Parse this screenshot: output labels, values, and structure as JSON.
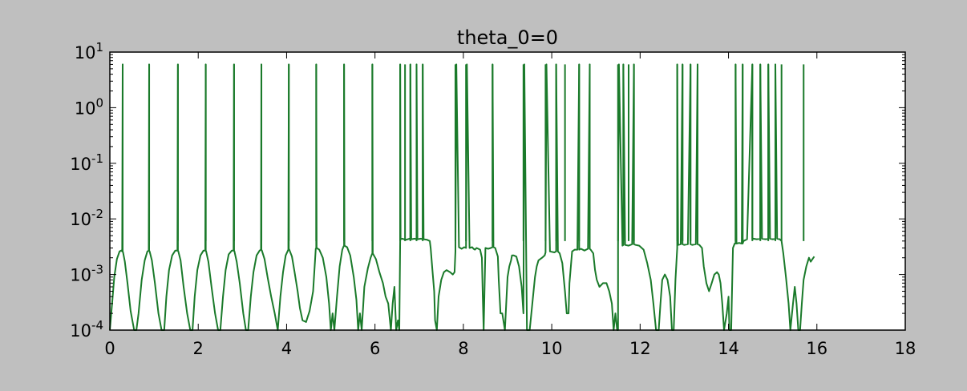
{
  "colors": {
    "figure_background": "#bfbfbf",
    "axes_background": "#ffffff",
    "series": "#1a7a2a",
    "frame": "#000000"
  },
  "chart_data": {
    "type": "line",
    "title": "theta_0=0",
    "xlabel": "",
    "ylabel": "",
    "xlim": [
      0,
      18
    ],
    "ylim": [
      0.0001,
      10
    ],
    "yscale": "log",
    "grid": false,
    "x_ticks": [
      "0",
      "2",
      "4",
      "6",
      "8",
      "10",
      "12",
      "14",
      "16",
      "18"
    ],
    "y_ticks": [
      {
        "base": "10",
        "exp": "-4"
      },
      {
        "base": "10",
        "exp": "-3"
      },
      {
        "base": "10",
        "exp": "-2"
      },
      {
        "base": "10",
        "exp": "-1"
      },
      {
        "base": "10",
        "exp": "0"
      },
      {
        "base": "10",
        "exp": "1"
      }
    ],
    "series": [
      {
        "color": "#1a7a2a",
        "x": [
          0.0,
          0.05,
          0.1,
          0.16,
          0.22,
          0.26,
          0.28,
          0.29,
          0.29,
          0.3,
          0.34,
          0.4,
          0.47,
          0.55,
          0.6,
          0.65,
          0.72,
          0.79,
          0.85,
          0.88,
          0.89,
          0.89,
          0.9,
          0.95,
          1.02,
          1.1,
          1.17,
          1.23,
          1.28,
          1.34,
          1.41,
          1.48,
          1.53,
          1.54,
          1.54,
          1.55,
          1.6,
          1.67,
          1.75,
          1.82,
          1.87,
          1.92,
          1.98,
          2.05,
          2.12,
          2.16,
          2.17,
          2.17,
          2.18,
          2.23,
          2.3,
          2.38,
          2.45,
          2.5,
          2.56,
          2.62,
          2.69,
          2.76,
          2.8,
          2.81,
          2.81,
          2.82,
          2.87,
          2.94,
          3.02,
          3.08,
          3.13,
          3.19,
          3.25,
          3.32,
          3.39,
          3.42,
          3.43,
          3.43,
          3.44,
          3.5,
          3.57,
          3.65,
          3.73,
          3.8,
          3.86,
          3.92,
          3.98,
          4.04,
          4.05,
          4.05,
          4.06,
          4.12,
          4.18,
          4.25,
          4.3,
          4.36,
          4.44,
          4.52,
          4.6,
          4.66,
          4.67,
          4.67,
          4.68,
          4.74,
          4.82,
          4.9,
          4.96,
          5.0,
          5.04,
          5.08,
          5.14,
          5.2,
          5.26,
          5.29,
          5.3,
          5.3,
          5.31,
          5.37,
          5.44,
          5.52,
          5.58,
          5.62,
          5.66,
          5.7,
          5.76,
          5.84,
          5.9,
          5.93,
          5.94,
          5.94,
          5.95,
          6.02,
          6.1,
          6.18,
          6.24,
          6.3,
          6.36,
          6.4,
          6.44,
          6.48,
          6.52,
          6.55,
          6.57,
          6.57,
          6.58,
          6.62,
          6.7,
          6.78,
          6.8,
          6.8,
          6.82,
          6.9,
          6.94,
          6.94,
          6.96,
          7.04,
          7.08,
          7.08,
          7.1,
          7.18,
          7.24,
          7.26,
          7.3,
          7.34,
          7.36,
          7.4,
          7.44,
          7.5,
          7.56,
          7.62,
          7.7,
          7.76,
          7.8,
          7.82,
          7.82,
          7.84,
          7.9,
          7.96,
          8.02,
          8.06,
          8.06,
          8.08,
          8.14,
          8.2,
          8.23,
          8.26,
          8.3,
          8.34,
          8.38,
          8.42,
          8.44,
          8.46,
          8.5,
          8.56,
          8.62,
          8.66,
          8.66,
          8.68,
          8.72,
          8.78,
          8.8,
          8.84,
          8.88,
          8.94,
          9.0,
          9.04,
          9.08,
          9.1,
          9.14,
          9.2,
          9.26,
          9.32,
          9.36,
          9.36,
          9.38,
          9.44,
          9.5,
          9.56,
          9.62,
          9.66,
          9.7,
          9.78,
          9.84,
          9.86,
          9.86,
          9.88,
          9.96,
          10.06,
          10.1,
          10.1,
          10.14,
          10.18,
          10.24,
          10.3,
          10.34,
          10.38,
          10.4,
          10.46,
          10.52,
          10.58,
          10.62,
          10.62,
          10.66,
          10.74,
          10.82,
          10.86,
          10.86,
          10.88,
          10.94,
          10.98,
          11.02,
          11.08,
          11.16,
          11.24,
          11.3,
          11.36,
          11.4,
          11.44,
          11.48,
          11.5,
          11.5,
          11.52,
          11.6,
          11.62,
          11.62,
          11.66,
          11.74,
          11.82,
          11.86,
          11.86,
          11.9,
          11.98,
          12.08,
          12.16,
          12.24,
          12.3,
          12.36,
          12.42,
          12.46,
          12.5,
          12.56,
          12.62,
          12.68,
          12.72,
          12.76,
          12.8,
          12.84,
          12.84,
          12.86,
          12.92,
          12.96,
          12.96,
          13.0,
          13.08,
          13.14,
          13.14,
          13.18,
          13.26,
          13.3,
          13.3,
          13.34,
          13.4,
          13.44,
          13.5,
          13.56,
          13.62,
          13.68,
          13.74,
          13.78,
          13.82,
          13.86,
          13.9,
          13.96,
          14.0,
          14.02,
          14.06,
          14.1,
          14.14,
          14.16,
          14.16,
          14.18,
          14.24,
          14.3,
          14.32,
          14.32,
          14.34,
          14.42,
          14.54,
          14.54,
          14.56,
          14.64,
          14.72,
          14.72,
          14.76,
          14.84,
          14.9,
          14.9,
          14.94,
          15.0,
          15.06,
          15.06,
          15.1,
          15.16,
          15.2,
          15.24,
          15.3,
          15.36,
          15.4,
          15.46,
          15.5,
          15.54,
          15.58,
          15.62,
          15.66,
          15.7,
          15.76,
          15.82,
          15.86,
          15.9,
          15.94
        ],
        "y": [
          0.0001,
          0.0003,
          0.0009,
          0.0019,
          0.0026,
          0.0027,
          0.0026,
          6,
          0.0026,
          0.0025,
          0.0017,
          0.0007,
          0.00022,
          0.0001,
          0.0001,
          0.0002,
          0.0008,
          0.0018,
          0.0026,
          0.0027,
          6,
          0.0027,
          0.0026,
          0.0018,
          0.0007,
          0.0002,
          0.0001,
          0.0001,
          0.0004,
          0.0012,
          0.0022,
          0.0027,
          0.0027,
          6,
          0.0027,
          0.0026,
          0.0018,
          0.0006,
          0.0002,
          0.0001,
          0.0001,
          0.0004,
          0.0012,
          0.0022,
          0.0027,
          0.0027,
          6,
          0.0027,
          0.0026,
          0.0017,
          0.0006,
          0.0002,
          0.0001,
          0.0001,
          0.0004,
          0.0012,
          0.0023,
          0.0027,
          0.0027,
          6,
          0.0027,
          0.0026,
          0.0017,
          0.0007,
          0.0002,
          0.0001,
          0.0001,
          0.0004,
          0.0011,
          0.0022,
          0.0027,
          0.0028,
          6,
          0.0028,
          0.0027,
          0.0019,
          0.0009,
          0.0004,
          0.0002,
          0.0001,
          0.0004,
          0.0011,
          0.0022,
          0.0028,
          6,
          0.0029,
          0.0028,
          0.0021,
          0.0011,
          0.0005,
          0.00025,
          0.00015,
          0.00014,
          0.00022,
          0.0005,
          0.0029,
          0.003,
          6,
          0.003,
          0.0028,
          0.002,
          0.0009,
          0.0003,
          0.0001,
          0.0002,
          0.0001,
          0.0004,
          0.0014,
          0.0028,
          0.0032,
          0.0033,
          6,
          0.0033,
          0.0031,
          0.0022,
          0.0009,
          0.00035,
          0.0001,
          0.0002,
          0.0001,
          0.0006,
          0.0013,
          0.002,
          0.0023,
          0.0024,
          6,
          0.0024,
          0.0019,
          0.0011,
          0.0007,
          0.0004,
          0.0003,
          0.0001,
          0.0003,
          0.0006,
          0.0001,
          0.00015,
          0.0001,
          0.0043,
          6,
          0.0043,
          0.0044,
          0.0042,
          0.0044,
          0.0043,
          6,
          0.0043,
          0.0044,
          0.0043,
          6,
          0.0043,
          0.0044,
          0.0043,
          6,
          0.0043,
          0.0042,
          0.004,
          0.003,
          0.0012,
          0.0005,
          0.00015,
          0.0001,
          0.0004,
          0.0008,
          0.0011,
          0.0012,
          0.0011,
          0.001,
          0.0011,
          0.0026,
          0.0031,
          6,
          0.0031,
          0.0029,
          0.0031,
          0.003,
          0.003,
          6,
          0.003,
          0.0031,
          0.0029,
          0.0028,
          0.003,
          0.0029,
          0.0028,
          0.002,
          0.0004,
          0.0001,
          0.003,
          0.0029,
          0.003,
          0.0031,
          6,
          0.0031,
          0.003,
          0.0021,
          0.0008,
          0.0002,
          0.0002,
          0.0001,
          0.0009,
          0.0014,
          0.0018,
          0.0022,
          0.0022,
          0.0021,
          0.0014,
          0.0006,
          0.0002,
          0.0002,
          6,
          0.0001,
          0.0001,
          0.0003,
          0.0009,
          0.0014,
          0.0018,
          0.002,
          0.0022,
          0.0025,
          0.0026,
          6,
          0.0026,
          0.0025,
          0.0026,
          6,
          0.0026,
          0.0024,
          0.0016,
          0.0005,
          0.0002,
          0.0002,
          0.0007,
          0.0026,
          0.0028,
          0.0028,
          6,
          0.0028,
          0.0029,
          0.0027,
          0.0029,
          6,
          0.0029,
          0.0028,
          0.0024,
          0.0012,
          0.0008,
          0.0006,
          0.0007,
          0.0007,
          0.0005,
          0.0003,
          0.0001,
          0.0002,
          0.0001,
          0.0001,
          0.003,
          6,
          0.0033,
          0.0034,
          6,
          0.0034,
          0.0033,
          0.0035,
          6,
          0.0035,
          0.0034,
          0.0033,
          0.0028,
          0.0016,
          0.0008,
          0.0003,
          0.0001,
          0.0001,
          0.0003,
          0.0008,
          0.001,
          0.0008,
          0.0004,
          0.0001,
          0.0001,
          0.0008,
          0.003,
          6,
          0.0034,
          0.0035,
          6,
          0.0035,
          0.0034,
          0.0035,
          6,
          0.0035,
          0.0034,
          0.0035,
          6,
          0.0035,
          0.0034,
          0.003,
          0.0014,
          0.0007,
          0.0005,
          0.0007,
          0.001,
          0.0011,
          0.001,
          0.0007,
          0.0003,
          0.0001,
          0.0002,
          0.0004,
          0.0001,
          0.0001,
          0.003,
          0.0036,
          0.0036,
          6,
          0.0036,
          0.0037,
          0.0036,
          6,
          0.0036,
          0.004,
          0.0043,
          6,
          0.0043,
          0.0044,
          0.0043,
          0.0044,
          6,
          0.0044,
          0.0043,
          0.0044,
          6,
          0.0044,
          0.0043,
          0.0044,
          6,
          0.0044,
          0.0043,
          0.004,
          0.0024,
          0.0009,
          0.0003,
          0.0001,
          0.0003,
          0.0006,
          0.0003,
          0.0001,
          0.0001,
          0.0003,
          0.0008,
          0.0014,
          0.002,
          0.0017,
          0.0019,
          0.0021
        ]
      }
    ],
    "spikes_x": [
      0.29,
      0.89,
      1.54,
      2.17,
      2.81,
      3.43,
      4.05,
      4.67,
      5.3,
      5.94,
      6.57,
      6.68,
      6.8,
      6.94,
      7.08,
      7.82,
      8.06,
      8.66,
      9.36,
      9.86,
      10.1,
      10.3,
      10.62,
      10.86,
      11.5,
      11.62,
      11.74,
      11.86,
      12.84,
      12.96,
      13.14,
      13.3,
      14.16,
      14.32,
      14.54,
      14.72,
      14.9,
      15.06,
      15.2,
      15.7
    ],
    "spike_value": 6
  }
}
